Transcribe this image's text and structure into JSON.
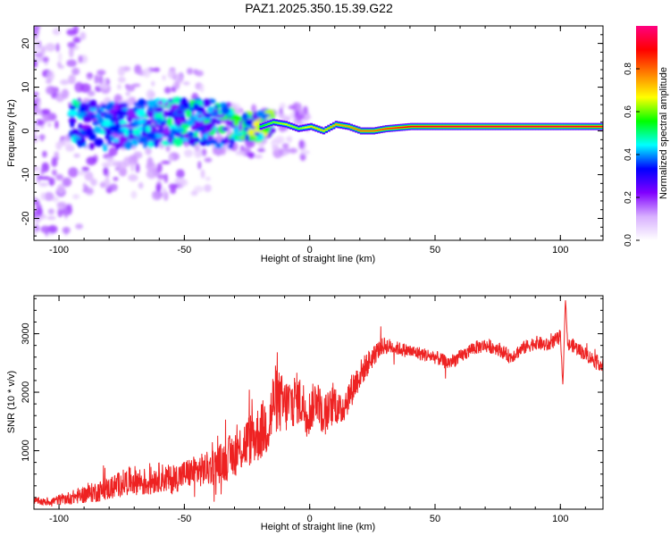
{
  "title": "PAZ1.2025.350.15.39.G22",
  "chart_data": [
    {
      "type": "heatmap",
      "title": "PAZ1.2025.350.15.39.G22",
      "xlabel": "Height of straight line (km)",
      "ylabel": "Frequency (Hz)",
      "xlim": [
        -110,
        117
      ],
      "ylim": [
        -25,
        24
      ],
      "x_ticks": [
        "-100",
        "-50",
        "0",
        "50",
        "100"
      ],
      "x_tick_values": [
        -100,
        -50,
        0,
        50,
        100
      ],
      "y_ticks": [
        "-20",
        "-10",
        "0",
        "10",
        "20"
      ],
      "y_tick_values": [
        -20,
        -10,
        0,
        10,
        20
      ],
      "colorbar": {
        "label": "Normalized spectral amplitude",
        "range": [
          0,
          1
        ],
        "ticks": [
          "0.0",
          "0.2",
          "0.4",
          "0.6",
          "0.8"
        ],
        "tick_values": [
          0,
          0.2,
          0.4,
          0.6,
          0.8
        ],
        "colors": [
          "#ffffff",
          "#d8b0ff",
          "#8000ff",
          "#0000ff",
          "#00ffff",
          "#00ff00",
          "#ffff00",
          "#ff8000",
          "#ff0000",
          "#ff0080"
        ]
      },
      "ridge": {
        "x": [
          -95,
          -80,
          -60,
          -40,
          -30,
          -20,
          -15,
          -10,
          -5,
          0,
          5,
          10,
          15,
          20,
          25,
          30,
          40,
          50,
          60,
          80,
          100,
          117
        ],
        "y": [
          2,
          1,
          2,
          2,
          1,
          1,
          2,
          1.5,
          0.5,
          1,
          0,
          1.5,
          1,
          0,
          0,
          0.5,
          1,
          1,
          1,
          1,
          1,
          1
        ],
        "amplitude": [
          0.35,
          0.3,
          0.35,
          0.4,
          0.45,
          0.55,
          0.6,
          0.65,
          0.6,
          0.7,
          0.7,
          0.75,
          0.75,
          0.8,
          0.8,
          0.85,
          0.9,
          0.92,
          0.93,
          0.93,
          0.93,
          0.9
        ]
      }
    },
    {
      "type": "line",
      "xlabel": "Height of straight line (km)",
      "ylabel": "SNR (10 * v/v)",
      "xlim": [
        -110,
        117
      ],
      "ylim": [
        0,
        3650
      ],
      "x_ticks": [
        "-100",
        "-50",
        "0",
        "50",
        "100"
      ],
      "x_tick_values": [
        -100,
        -50,
        0,
        50,
        100
      ],
      "y_ticks": [
        "1000",
        "2000",
        "3000"
      ],
      "y_tick_values": [
        1000,
        2000,
        3000
      ],
      "color": "#ee2222",
      "series": [
        {
          "name": "SNR",
          "x": [
            -110,
            -105,
            -100,
            -95,
            -90,
            -85,
            -80,
            -75,
            -70,
            -65,
            -60,
            -55,
            -50,
            -45,
            -40,
            -35,
            -30,
            -25,
            -20,
            -16,
            -15,
            -14,
            -10,
            -5,
            0,
            3,
            5,
            8,
            10,
            12,
            15,
            20,
            25,
            28,
            30,
            35,
            40,
            45,
            50,
            55,
            60,
            65,
            70,
            75,
            80,
            85,
            90,
            95,
            100,
            101,
            102,
            103,
            105,
            110,
            117
          ],
          "y": [
            150,
            120,
            160,
            200,
            250,
            300,
            350,
            450,
            500,
            450,
            550,
            500,
            600,
            650,
            700,
            800,
            950,
            1150,
            1300,
            1500,
            1700,
            1900,
            1750,
            1900,
            1650,
            1950,
            1600,
            1700,
            1850,
            1650,
            1900,
            2300,
            2600,
            2750,
            2800,
            2750,
            2700,
            2650,
            2600,
            2500,
            2600,
            2750,
            2800,
            2750,
            2600,
            2750,
            2850,
            2800,
            2950,
            2100,
            3600,
            2800,
            2800,
            2650,
            2450
          ],
          "noise": [
            60,
            60,
            90,
            120,
            150,
            180,
            200,
            220,
            250,
            250,
            250,
            250,
            250,
            280,
            300,
            350,
            400,
            450,
            500,
            550,
            600,
            600,
            500,
            450,
            400,
            350,
            350,
            350,
            350,
            300,
            300,
            250,
            200,
            150,
            150,
            120,
            120,
            120,
            120,
            120,
            120,
            120,
            120,
            120,
            120,
            120,
            120,
            120,
            120,
            0,
            0,
            120,
            120,
            120,
            120
          ]
        }
      ]
    }
  ]
}
